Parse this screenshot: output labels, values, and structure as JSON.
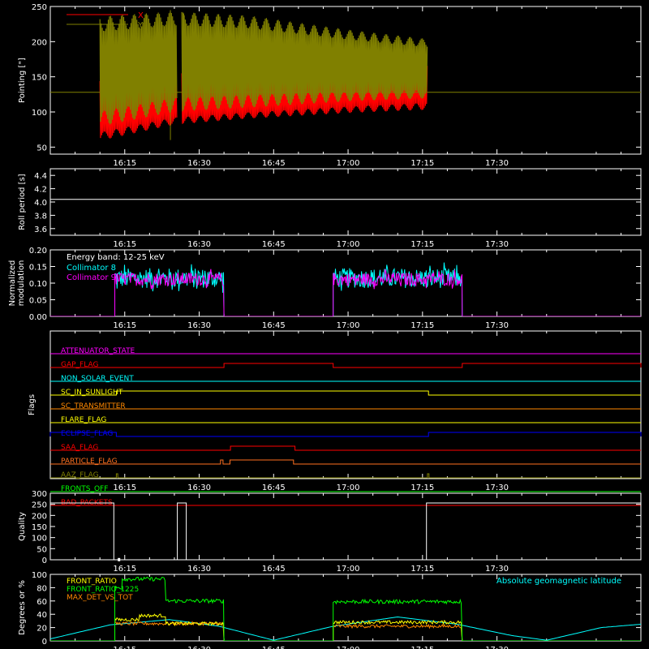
{
  "time_axis": {
    "start_minutes": 960,
    "end_minutes": 1079,
    "tick_labels": [
      "16:15",
      "16:30",
      "16:45",
      "17:00",
      "17:15",
      "17:30"
    ],
    "tick_minutes": [
      975,
      990,
      1005,
      1020,
      1035,
      1050
    ]
  },
  "chart_data": [
    {
      "id": "pointing",
      "type": "line",
      "ylabel": "Pointing [\"]",
      "ylim": [
        40,
        250
      ],
      "yticks": [
        50,
        100,
        150,
        200,
        250
      ],
      "legend": [
        "X",
        "Y"
      ],
      "series": [
        {
          "name": "X",
          "color": "#ff0000",
          "segments": [
            [
              970,
              985.5
            ],
            [
              986.5,
              1036
            ]
          ],
          "band_low": [
            [
              970,
              65
            ],
            [
              985,
              87
            ],
            [
              1000,
              95
            ],
            [
              1020,
              103
            ],
            [
              1036,
              108
            ]
          ],
          "band_high": [
            [
              970,
              140
            ],
            [
              985,
              150
            ],
            [
              1000,
              150
            ],
            [
              1020,
              160
            ],
            [
              1036,
              170
            ]
          ]
        },
        {
          "name": "Y",
          "color": "#808000",
          "segments": [
            [
              970,
              985.5
            ],
            [
              986.5,
              1036
            ]
          ],
          "band_low": [
            [
              970,
              90
            ],
            [
              985,
              110
            ],
            [
              1000,
              115
            ],
            [
              1020,
              122
            ],
            [
              1036,
              125
            ]
          ],
          "band_high": [
            [
              970,
              225
            ],
            [
              985,
              233
            ],
            [
              1000,
              228
            ],
            [
              1020,
              210
            ],
            [
              1036,
              198
            ]
          ]
        }
      ],
      "reference_line": {
        "value": 128,
        "color": "#808000"
      }
    },
    {
      "id": "roll",
      "type": "line",
      "ylabel": "Roll period [s]",
      "ylim": [
        3.5,
        4.5
      ],
      "yticks": [
        3.6,
        3.8,
        4.0,
        4.2,
        4.4
      ],
      "ytick_labels": [
        "3.6",
        "3.8",
        "4.0",
        "4.2",
        "4.4"
      ],
      "series": [
        {
          "color": "#ffffff",
          "x": [
            960,
            1079
          ],
          "y": [
            4.04,
            4.04
          ]
        }
      ]
    },
    {
      "id": "modulation",
      "type": "line",
      "ylabel": "Normalized modulation",
      "ylim": [
        0,
        0.2
      ],
      "yticks": [
        0,
        0.05,
        0.1,
        0.15,
        0.2
      ],
      "ytick_labels": [
        "0.00",
        "0.05",
        "0.10",
        "0.15",
        "0.20"
      ],
      "legend_title": "Energy band: 12-25 keV",
      "series": [
        {
          "name": "Collimator 8",
          "color": "#00ffff",
          "active": [
            [
              973,
              995
            ],
            [
              1017,
              1043
            ]
          ],
          "level": 0.115,
          "spread": 0.03
        },
        {
          "name": "Collimator 9",
          "color": "#ff00ff",
          "active": [
            [
              973,
              995
            ],
            [
              1017,
              1043
            ]
          ],
          "level": 0.112,
          "spread": 0.02
        }
      ]
    },
    {
      "id": "flags",
      "type": "line",
      "ylabel": "Flags",
      "rows": [
        {
          "name": "ATTENUATOR_STATE",
          "color": "#ff00ff",
          "high": []
        },
        {
          "name": "GAP_FLAG",
          "color": "#ff0000",
          "high": [
            [
              995,
              1017
            ],
            [
              1043,
              1079
            ]
          ]
        },
        {
          "name": "NON_SOLAR_EVENT",
          "color": "#00ffff",
          "high": []
        },
        {
          "name": "SC_IN_SUNLIGHT",
          "color": "#ffff00",
          "high": [
            [
              973.3,
              1036.2
            ]
          ]
        },
        {
          "name": "SC_TRANSMITTER",
          "color": "#ff8800",
          "high": []
        },
        {
          "name": "FLARE_FLAG",
          "color": "#ffff00",
          "high": []
        },
        {
          "name": "ECLIPSE_FLAG",
          "color": "#0000ff",
          "high": [
            [
              960,
              973.3
            ],
            [
              1036.2,
              1079
            ]
          ]
        },
        {
          "name": "SAA_FLAG",
          "color": "#ff0000",
          "high": [
            [
              996.3,
              1009.3
            ]
          ]
        },
        {
          "name": "PARTICLE_FLAG",
          "color": "#ff7020",
          "high": [
            [
              994.3,
              994.8
            ],
            [
              996.2,
              1009
            ]
          ]
        },
        {
          "name": "AAZ_FLAG",
          "color": "#808000",
          "high": [
            [
              973.3,
              973.6
            ],
            [
              1036,
              1036.3
            ]
          ]
        },
        {
          "name": "FRONTS_OFF",
          "color": "#00ff00",
          "high": []
        },
        {
          "name": "BAD_PACKETS",
          "color": "#ff0000",
          "high": []
        }
      ]
    },
    {
      "id": "quality",
      "type": "line",
      "ylabel": "Quality",
      "ylim": [
        0,
        300
      ],
      "yticks": [
        0,
        50,
        100,
        150,
        200,
        250,
        300
      ],
      "series": [
        {
          "color": "#ffffff",
          "x": [
            960,
            972.8,
            972.8,
            973.5,
            973.5,
            985.6,
            985.6,
            987.4,
            987.4,
            1035.8,
            1035.8,
            1079
          ],
          "y": [
            256,
            256,
            0,
            0,
            0,
            0,
            256,
            256,
            0,
            0,
            256,
            256
          ]
        }
      ]
    },
    {
      "id": "ratios",
      "type": "line",
      "ylabel": "Degrees or %",
      "ylim": [
        0,
        100
      ],
      "yticks": [
        0,
        20,
        40,
        60,
        80,
        100
      ],
      "right_legend": {
        "name": "Absolute geomagnetic latitude",
        "color": "#00ffff"
      },
      "series": [
        {
          "name": "FRONT_RATIO",
          "color": "#ffff00",
          "pieces": [
            [
              973,
              978,
              32
            ],
            [
              978,
              983.3,
              38
            ],
            [
              983.3,
              995,
              26
            ],
            [
              1017,
              1043,
              28
            ]
          ]
        },
        {
          "name": "FRONT_RATIO_1225",
          "color": "#00ff00",
          "pieces": [
            [
              973,
              974.5,
              80
            ],
            [
              974.5,
              983.3,
              93
            ],
            [
              983.3,
              995,
              60
            ],
            [
              1017,
              1043,
              59
            ]
          ]
        },
        {
          "name": "MAX_DET_VS_TOT",
          "color": "#ff8800",
          "pieces": [
            [
              973,
              995,
              26
            ],
            [
              1017,
              1043,
              22
            ]
          ]
        },
        {
          "name": "Absolute geomagnetic latitude",
          "color": "#00ffff",
          "curve": [
            [
              960,
              3
            ],
            [
              972,
              24
            ],
            [
              984,
              32
            ],
            [
              994,
              22
            ],
            [
              1005,
              1
            ],
            [
              1017,
              22
            ],
            [
              1030,
              36
            ],
            [
              1042,
              25
            ],
            [
              1053,
              8
            ],
            [
              1060,
              1
            ],
            [
              1071,
              20
            ],
            [
              1079,
              25
            ]
          ]
        }
      ]
    }
  ]
}
